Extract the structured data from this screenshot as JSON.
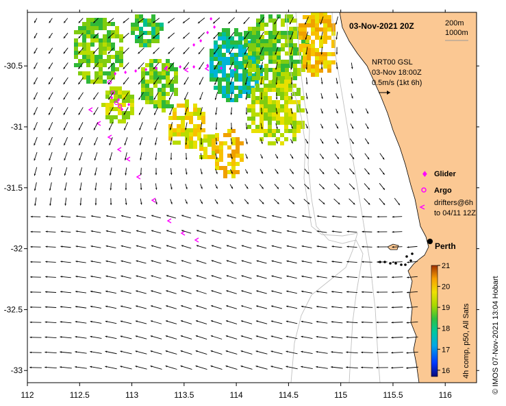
{
  "title": "03-Nov-2021 20Z",
  "depth_labels": [
    "200m",
    "1000m"
  ],
  "current_info": [
    "NRT00 GSL",
    "03-Nov 18:00Z",
    "0.5m/s (1kt 6h)"
  ],
  "legend": {
    "glider": "Glider",
    "argo": "Argo",
    "drifters_line1": "drifters@6h",
    "drifters_line2": "to 04/11 12Z"
  },
  "city": "Perth",
  "colorbar": {
    "label": "4h comp, p50, All Sats",
    "ticks": [
      "21",
      "20",
      "19",
      "18",
      "17",
      "16"
    ],
    "min": 15.7,
    "max": 21
  },
  "credit": "© IMOS 07-Nov-2021 13:04 Hobart",
  "x_axis_ticks": [
    "112",
    "112.5",
    "113",
    "113.5",
    "114",
    "114.5",
    "115",
    "115.5",
    "116"
  ],
  "y_axis_ticks": [
    "-30.5",
    "-31",
    "-31.5",
    "-32",
    "-32.5",
    "-33"
  ],
  "lon_range": [
    112,
    116.3
  ],
  "lat_range": [
    -33.1,
    -30.06
  ],
  "colors": {
    "land": "#fbc893",
    "glider": "#ff00ff",
    "bathymetry": "#c0c0c0",
    "arrow": "#000000"
  }
}
